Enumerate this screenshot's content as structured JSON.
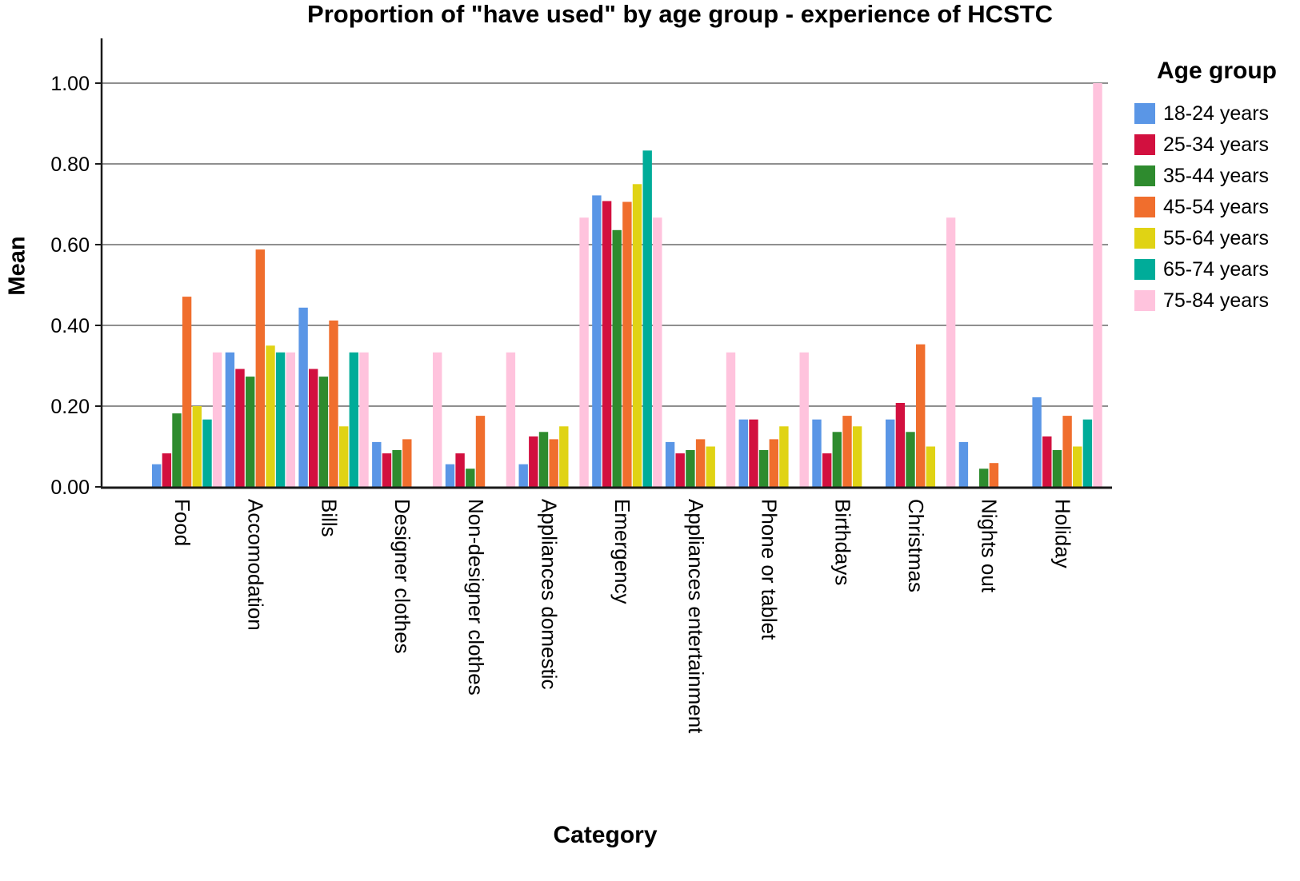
{
  "title": "Proportion of \"have used\" by age group - experience of HCSTC",
  "y_axis": {
    "title": "Mean",
    "tick_labels": [
      "0.00",
      "0.20",
      "0.40",
      "0.60",
      "0.80",
      "1.00"
    ]
  },
  "x_axis": {
    "title": "Category"
  },
  "legend": {
    "title": "Age group"
  },
  "chart_data": {
    "type": "bar",
    "subtype": "grouped-vertical",
    "title": "Proportion of \"have used\" by age group - experience of HCSTC",
    "xlabel": "Category",
    "ylabel": "Mean",
    "ylim": [
      0,
      1.1
    ],
    "yticks": [
      0.0,
      0.2,
      0.4,
      0.6,
      0.8,
      1.0
    ],
    "grid": true,
    "legend_position": "right",
    "legend_title": "Age group",
    "categories": [
      "Food",
      "Accomodation",
      "Bills",
      "Designer clothes",
      "Non-designer clothes",
      "Appliances domestic",
      "Emergency",
      "Appliances entertainment",
      "Phone or tablet",
      "Birthdays",
      "Christmas",
      "Nights out",
      "Holiday"
    ],
    "series": [
      {
        "name": "18-24 years",
        "color": "#5A96E6",
        "values": [
          0.056,
          0.333,
          0.444,
          0.111,
          0.056,
          0.056,
          0.722,
          0.111,
          0.167,
          0.167,
          0.167,
          0.111,
          0.222
        ]
      },
      {
        "name": "25-34 years",
        "color": "#D2103F",
        "values": [
          0.083,
          0.292,
          0.292,
          0.083,
          0.083,
          0.125,
          0.708,
          0.083,
          0.167,
          0.083,
          0.208,
          0.0,
          0.125
        ]
      },
      {
        "name": "35-44 years",
        "color": "#2E8B2E",
        "values": [
          0.182,
          0.273,
          0.273,
          0.091,
          0.045,
          0.136,
          0.636,
          0.091,
          0.091,
          0.136,
          0.136,
          0.045,
          0.091
        ]
      },
      {
        "name": "45-54 years",
        "color": "#F06E2D",
        "values": [
          0.471,
          0.588,
          0.412,
          0.118,
          0.176,
          0.118,
          0.706,
          0.118,
          0.118,
          0.176,
          0.353,
          0.059,
          0.176
        ]
      },
      {
        "name": "55-64 years",
        "color": "#E0D314",
        "values": [
          0.2,
          0.35,
          0.15,
          0.0,
          0.0,
          0.15,
          0.75,
          0.1,
          0.15,
          0.15,
          0.1,
          0.0,
          0.1
        ]
      },
      {
        "name": "65-74 years",
        "color": "#00AC99",
        "values": [
          0.167,
          0.333,
          0.333,
          0.0,
          0.0,
          0.0,
          0.833,
          0.0,
          0.0,
          0.0,
          0.0,
          0.0,
          0.167
        ]
      },
      {
        "name": "75-84 years",
        "color": "#FFC3DD",
        "values": [
          0.333,
          0.333,
          0.333,
          0.333,
          0.333,
          0.667,
          0.667,
          0.333,
          0.333,
          0.0,
          0.667,
          0.0,
          1.0
        ]
      }
    ]
  },
  "colors": {
    "gridline": "#8F8F8F",
    "axis": "#1A1A1A",
    "background": "#FFFFFF"
  }
}
